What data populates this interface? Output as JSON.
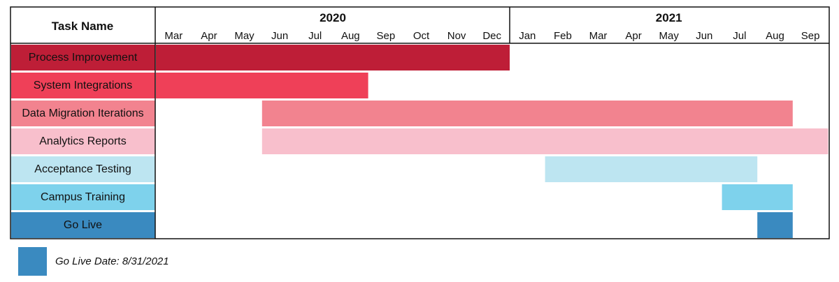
{
  "chart_data": {
    "type": "gantt",
    "header": {
      "task_column_label": "Task Name"
    },
    "years": [
      {
        "label": "2020",
        "start_month_index": 0,
        "month_count": 10
      },
      {
        "label": "2021",
        "start_month_index": 10,
        "month_count": 9
      }
    ],
    "months": [
      "Mar",
      "Apr",
      "May",
      "Jun",
      "Jul",
      "Aug",
      "Sep",
      "Oct",
      "Nov",
      "Dec",
      "Jan",
      "Feb",
      "Mar",
      "Apr",
      "May",
      "Jun",
      "Jul",
      "Aug",
      "Sep"
    ],
    "tasks": [
      {
        "name": "Process Improvement",
        "start": "2020-03",
        "end": "2020-12",
        "color": "#be1e37",
        "label_bg": "#be1e37"
      },
      {
        "name": "System Integrations",
        "start": "2020-03",
        "end": "2020-08",
        "color": "#ef4058",
        "label_bg": "#ef4058"
      },
      {
        "name": "Data Migration Iterations",
        "start": "2020-06",
        "end": "2021-08",
        "color": "#f2838f",
        "label_bg": "#f2838f"
      },
      {
        "name": "Analytics Reports",
        "start": "2020-06",
        "end": "2021-09",
        "color": "#f8bfcc",
        "label_bg": "#f8bfcc"
      },
      {
        "name": "Acceptance Testing",
        "start": "2021-02",
        "end": "2021-07",
        "color": "#bde5f1",
        "label_bg": "#bde5f1"
      },
      {
        "name": "Campus Training",
        "start": "2021-07",
        "end": "2021-08",
        "color": "#7ed2ec",
        "label_bg": "#7ed2ec"
      },
      {
        "name": "Go Live",
        "start": "2021-08",
        "end": "2021-08",
        "color": "#3a8ac0",
        "label_bg": "#3a8ac0"
      }
    ],
    "legend": {
      "text": "Go Live Date: 8/31/2021",
      "color": "#3a8ac0"
    }
  }
}
